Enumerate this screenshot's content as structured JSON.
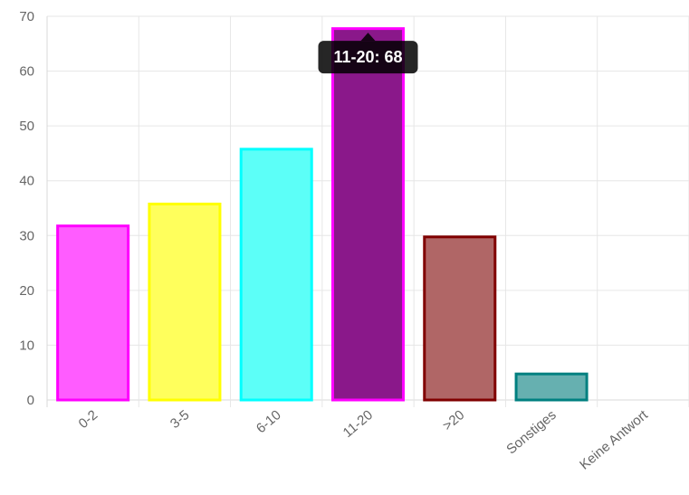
{
  "chart_data": {
    "type": "bar",
    "categories": [
      "0-2",
      "3-5",
      "6-10",
      "11-20",
      ">20",
      "Sonstiges",
      "Keine Antwort"
    ],
    "values": [
      32,
      36,
      46,
      68,
      30,
      5,
      0
    ],
    "ylim": [
      0,
      70
    ],
    "yticks": [
      0,
      10,
      20,
      30,
      40,
      50,
      60,
      70
    ],
    "grid": true,
    "legend": "none",
    "fill_colors": [
      "#ff5cff",
      "#ffff5c",
      "#5cfff8",
      "#8a188a",
      "#b06666",
      "#66b0b0",
      "#5c5cff"
    ],
    "border_colors": [
      "#ff00ff",
      "#ffff00",
      "#00ffff",
      "#ff00ff",
      "#800000",
      "#008080",
      "#0000ff"
    ],
    "tooltip": {
      "category": "11-20",
      "text": "11-20: 68"
    }
  }
}
